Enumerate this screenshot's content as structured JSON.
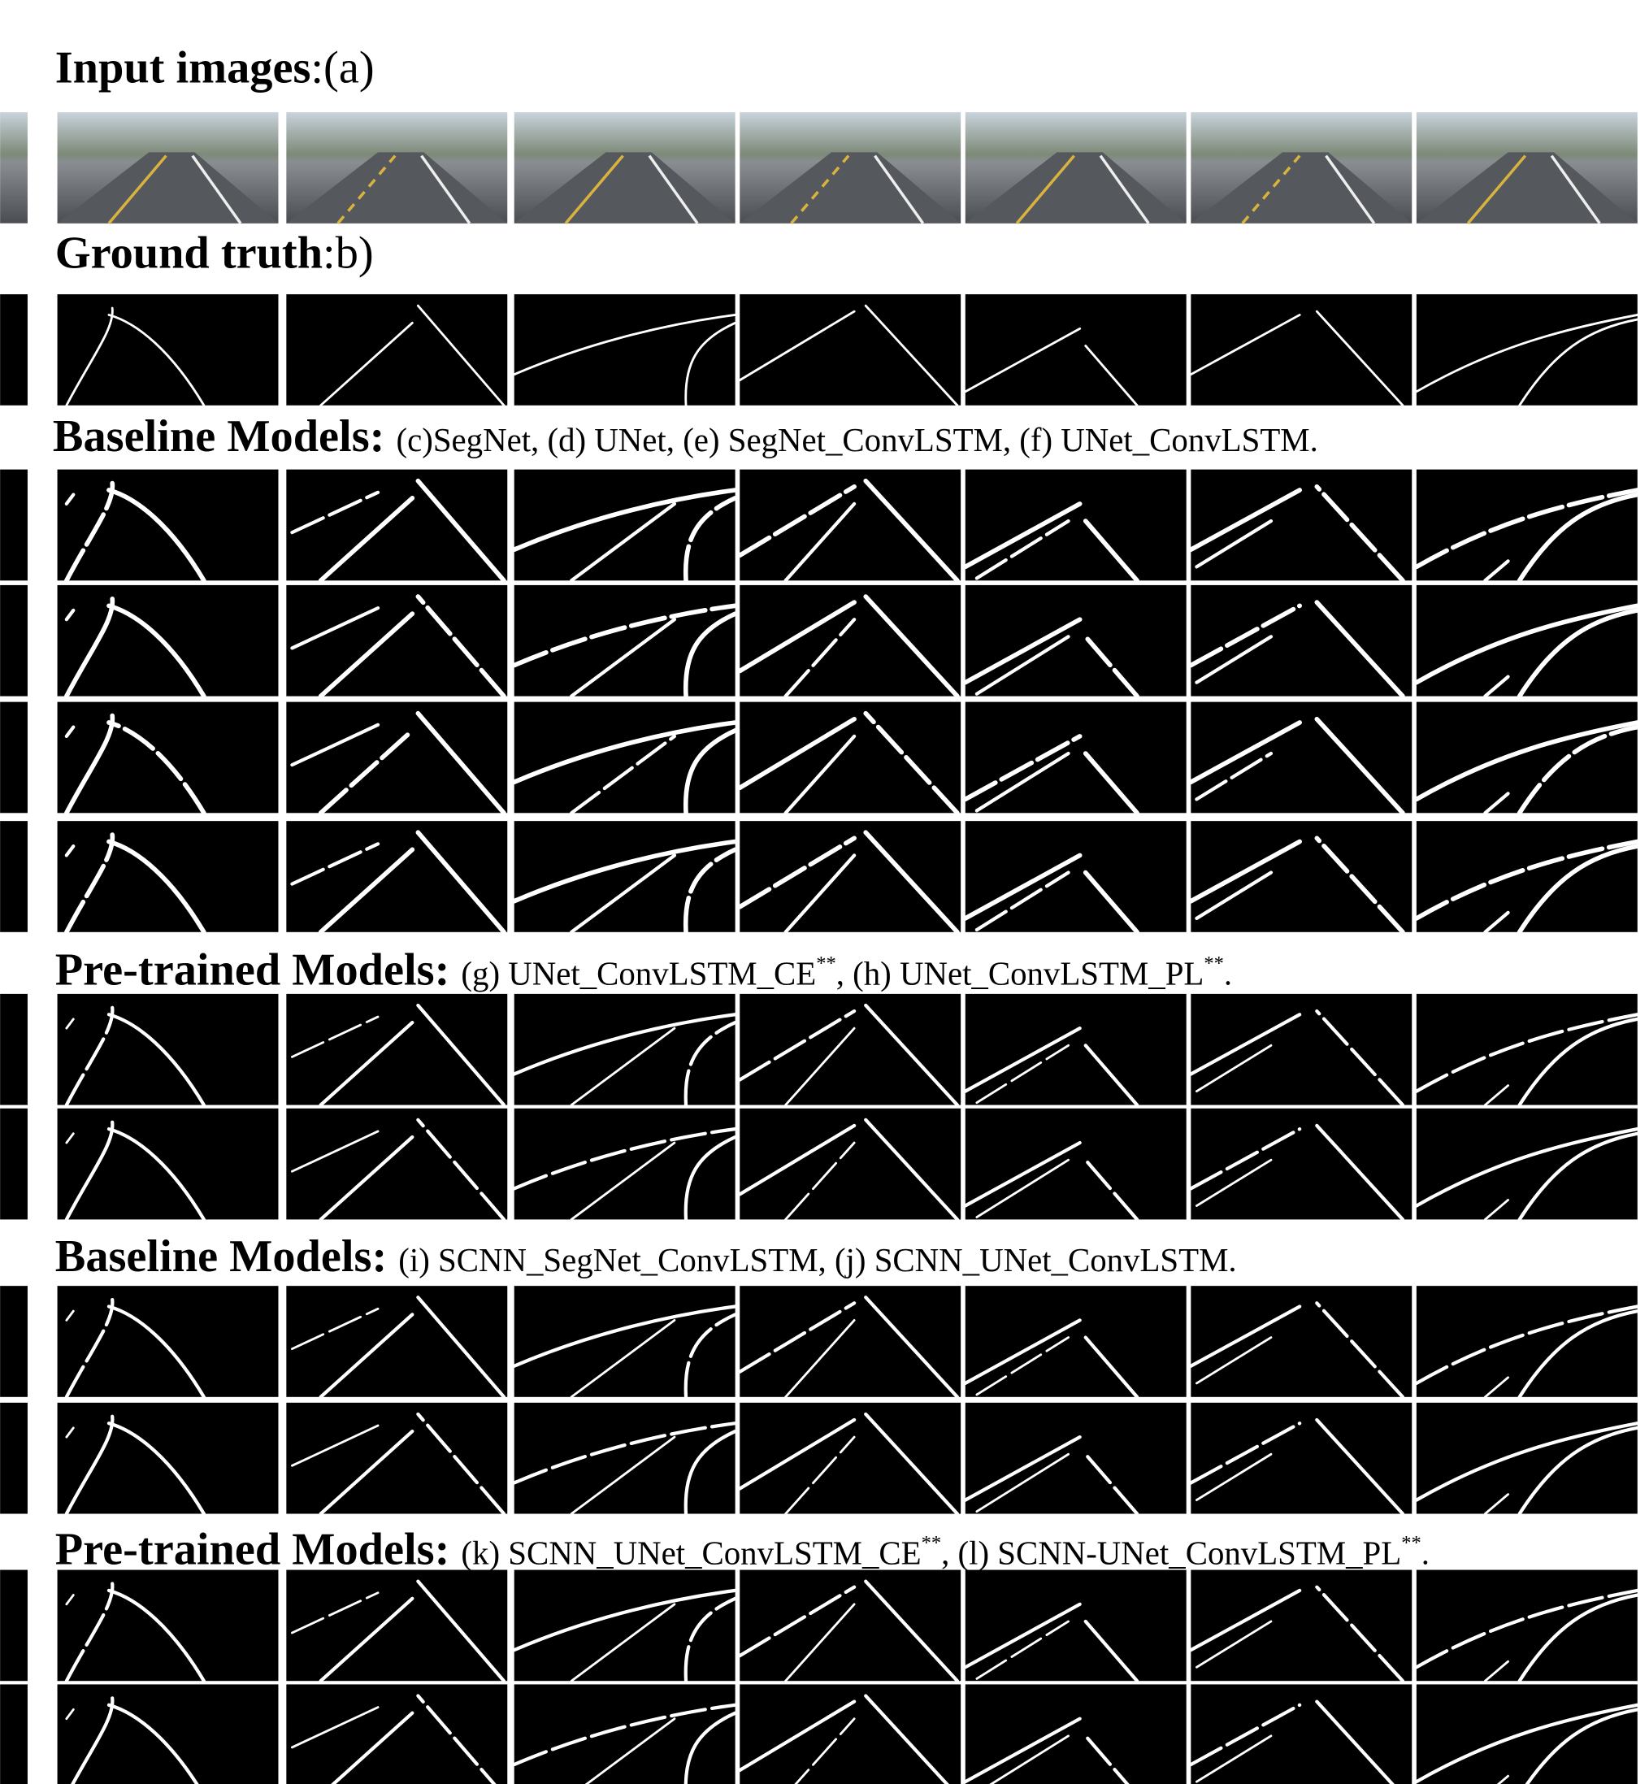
{
  "sections": [
    {
      "title": "Input images",
      "caption": [
        ":(a)"
      ]
    },
    {
      "title": "Ground truth",
      "caption": [
        ":b)"
      ]
    },
    {
      "title": "Baseline Models:",
      "caption": [
        "(c)SegNet, (d) UNet, (e) SegNet_ConvLSTM, (f) UNet_ConvLSTM."
      ]
    },
    {
      "title": "Pre-trained Models:",
      "caption": [
        "(g) UNet_ConvLSTM_CE",
        {
          "sup": "**"
        },
        ", (h) UNet_ConvLSTM_PL",
        {
          "sup": "**"
        },
        "."
      ]
    },
    {
      "title": "Baseline Models:",
      "caption": [
        "(i) SCNN_SegNet_ConvLSTM, (j) SCNN_UNet_ConvLSTM."
      ]
    },
    {
      "title": "Pre-trained Models:",
      "caption": [
        "(k) SCNN_UNet_ConvLSTM_CE",
        {
          "sup": "**"
        },
        ", (l) SCNN-UNet_ConvLSTM_PL",
        {
          "sup": "**"
        },
        "."
      ]
    }
  ]
}
